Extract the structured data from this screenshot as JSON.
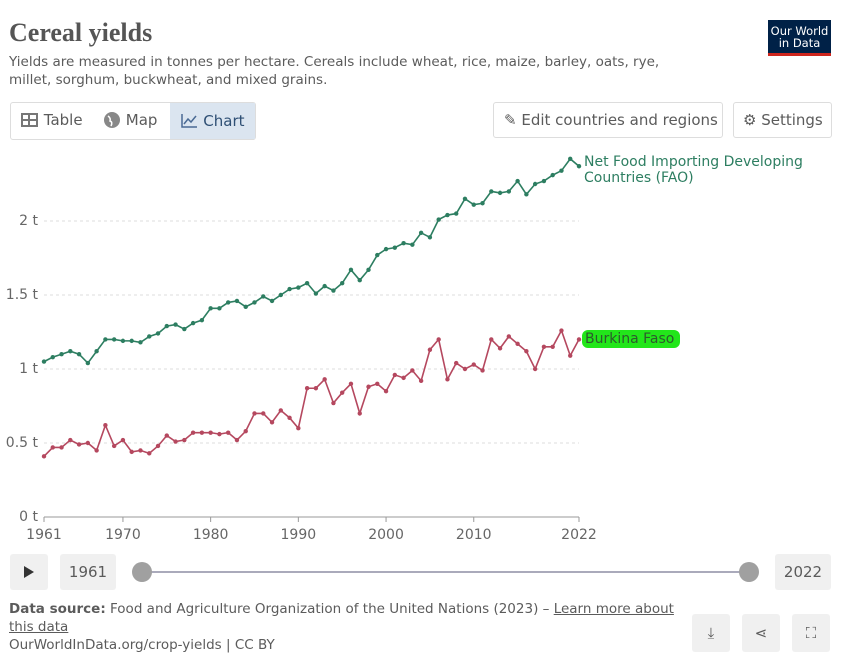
{
  "header": {
    "title": "Cereal yields",
    "subtitle": "Yields are measured in tonnes per hectare. Cereals include wheat, rice, maize, barley, oats, rye, millet, sorghum, buckwheat, and mixed grains.",
    "logo": "Our World in Data"
  },
  "tabs": [
    "Table",
    "Map",
    "Chart"
  ],
  "buttons": {
    "edit": "Edit countries and regions",
    "settings": "Settings"
  },
  "timeline": {
    "start": "1961",
    "end": "2022"
  },
  "footer": {
    "source_label": "Data source:",
    "source": "Food and Agriculture Organization of the United Nations (2023) – ",
    "link": "Learn more about this data",
    "url": "OurWorldInData.org/crop-yields | CC BY"
  },
  "chart_data": {
    "type": "line",
    "x": [
      1961,
      1962,
      1963,
      1964,
      1965,
      1966,
      1967,
      1968,
      1969,
      1970,
      1971,
      1972,
      1973,
      1974,
      1975,
      1976,
      1977,
      1978,
      1979,
      1980,
      1981,
      1982,
      1983,
      1984,
      1985,
      1986,
      1987,
      1988,
      1989,
      1990,
      1991,
      1992,
      1993,
      1994,
      1995,
      1996,
      1997,
      1998,
      1999,
      2000,
      2001,
      2002,
      2003,
      2004,
      2005,
      2006,
      2007,
      2008,
      2009,
      2010,
      2011,
      2012,
      2013,
      2014,
      2015,
      2016,
      2017,
      2018,
      2019,
      2020,
      2021,
      2022
    ],
    "series": [
      {
        "name": "Net Food Importing Developing Countries (FAO)",
        "color": "#2d7e61",
        "values": [
          1.05,
          1.08,
          1.1,
          1.12,
          1.1,
          1.04,
          1.12,
          1.2,
          1.2,
          1.19,
          1.19,
          1.18,
          1.22,
          1.24,
          1.29,
          1.3,
          1.27,
          1.31,
          1.33,
          1.41,
          1.41,
          1.45,
          1.46,
          1.42,
          1.45,
          1.49,
          1.46,
          1.5,
          1.54,
          1.55,
          1.58,
          1.51,
          1.56,
          1.53,
          1.58,
          1.67,
          1.6,
          1.67,
          1.77,
          1.81,
          1.82,
          1.85,
          1.84,
          1.92,
          1.89,
          2.01,
          2.04,
          2.05,
          2.15,
          2.11,
          2.12,
          2.2,
          2.19,
          2.2,
          2.27,
          2.18,
          2.25,
          2.27,
          2.31,
          2.34,
          2.42,
          2.37
        ]
      },
      {
        "name": "Burkina Faso",
        "color": "#b5485f",
        "values": [
          0.41,
          0.47,
          0.47,
          0.52,
          0.49,
          0.5,
          0.45,
          0.62,
          0.48,
          0.52,
          0.44,
          0.45,
          0.43,
          0.48,
          0.55,
          0.51,
          0.52,
          0.57,
          0.57,
          0.57,
          0.56,
          0.57,
          0.52,
          0.58,
          0.7,
          0.7,
          0.64,
          0.72,
          0.67,
          0.6,
          0.87,
          0.87,
          0.93,
          0.77,
          0.84,
          0.9,
          0.7,
          0.88,
          0.9,
          0.85,
          0.96,
          0.94,
          0.99,
          0.92,
          1.13,
          1.2,
          0.93,
          1.04,
          1.0,
          1.03,
          0.99,
          1.2,
          1.14,
          1.22,
          1.17,
          1.12,
          1.0,
          1.15,
          1.15,
          1.26,
          1.09,
          1.2
        ]
      }
    ],
    "xlim": [
      1961,
      2022
    ],
    "xticks": [
      1961,
      1970,
      1980,
      1990,
      2000,
      2010,
      2022
    ],
    "ylim": [
      0,
      2.5
    ],
    "yticks": [
      {
        "value": 0,
        "label": "0 t"
      },
      {
        "value": 0.5,
        "label": "0.5 t"
      },
      {
        "value": 1,
        "label": "1 t"
      },
      {
        "value": 1.5,
        "label": "1.5 t"
      },
      {
        "value": 2,
        "label": "2 t"
      }
    ],
    "grid": true
  }
}
